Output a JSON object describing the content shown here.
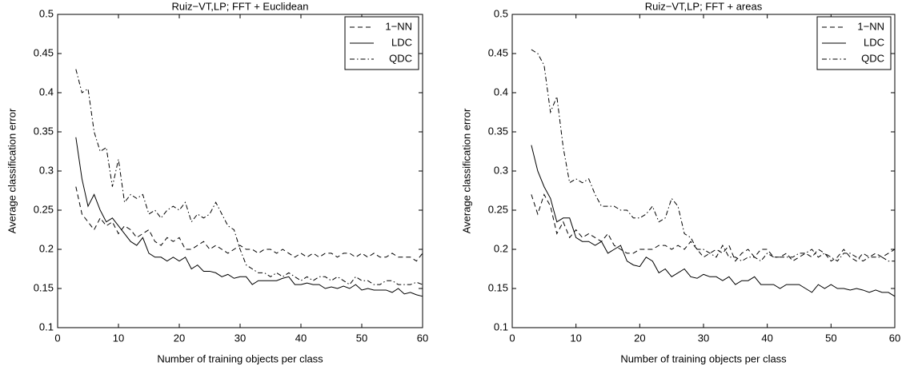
{
  "chart_data": [
    {
      "type": "line",
      "title": "Ruiz−VT,LP; FFT + Euclidean",
      "x_label": "Number of training objects per class",
      "y_label": "Average classification error",
      "xlim": [
        0,
        60
      ],
      "ylim": [
        0.1,
        0.5
      ],
      "xticks": [
        0,
        10,
        20,
        30,
        40,
        50,
        60
      ],
      "yticks": [
        0.1,
        0.15,
        0.2,
        0.25,
        0.3,
        0.35,
        0.4,
        0.45,
        0.5
      ],
      "legend": "top-right",
      "x": [
        3,
        4,
        5,
        6,
        7,
        8,
        9,
        10,
        11,
        12,
        13,
        14,
        15,
        16,
        17,
        18,
        19,
        20,
        21,
        22,
        23,
        24,
        25,
        26,
        27,
        28,
        29,
        30,
        31,
        32,
        33,
        34,
        35,
        36,
        37,
        38,
        39,
        40,
        41,
        42,
        43,
        44,
        45,
        46,
        47,
        48,
        49,
        50,
        51,
        52,
        53,
        54,
        55,
        56,
        57,
        58,
        59,
        60
      ],
      "series": [
        {
          "name": "1−NN",
          "color": "#000000",
          "style": "dashed",
          "values": [
            0.28,
            0.245,
            0.235,
            0.225,
            0.24,
            0.23,
            0.235,
            0.22,
            0.23,
            0.225,
            0.215,
            0.22,
            0.225,
            0.21,
            0.205,
            0.215,
            0.21,
            0.215,
            0.2,
            0.2,
            0.205,
            0.21,
            0.2,
            0.205,
            0.2,
            0.195,
            0.2,
            0.205,
            0.2,
            0.2,
            0.195,
            0.2,
            0.2,
            0.195,
            0.2,
            0.195,
            0.19,
            0.195,
            0.19,
            0.195,
            0.19,
            0.195,
            0.195,
            0.19,
            0.195,
            0.195,
            0.19,
            0.195,
            0.19,
            0.195,
            0.19,
            0.19,
            0.195,
            0.19,
            0.19,
            0.19,
            0.185,
            0.195
          ]
        },
        {
          "name": "LDC",
          "color": "#000000",
          "style": "solid",
          "values": [
            0.343,
            0.29,
            0.255,
            0.27,
            0.25,
            0.235,
            0.24,
            0.23,
            0.22,
            0.21,
            0.205,
            0.215,
            0.195,
            0.19,
            0.19,
            0.185,
            0.19,
            0.185,
            0.19,
            0.175,
            0.18,
            0.172,
            0.172,
            0.17,
            0.165,
            0.168,
            0.163,
            0.165,
            0.165,
            0.155,
            0.16,
            0.16,
            0.16,
            0.16,
            0.163,
            0.165,
            0.155,
            0.155,
            0.157,
            0.155,
            0.155,
            0.15,
            0.152,
            0.15,
            0.153,
            0.15,
            0.155,
            0.148,
            0.15,
            0.148,
            0.148,
            0.148,
            0.145,
            0.15,
            0.143,
            0.145,
            0.142,
            0.14
          ]
        },
        {
          "name": "QDC",
          "color": "#000000",
          "style": "dashdot",
          "values": [
            0.43,
            0.4,
            0.405,
            0.35,
            0.325,
            0.33,
            0.28,
            0.315,
            0.26,
            0.27,
            0.265,
            0.27,
            0.245,
            0.25,
            0.24,
            0.25,
            0.255,
            0.25,
            0.26,
            0.235,
            0.245,
            0.24,
            0.245,
            0.26,
            0.245,
            0.23,
            0.225,
            0.2,
            0.18,
            0.175,
            0.17,
            0.17,
            0.165,
            0.17,
            0.165,
            0.17,
            0.165,
            0.16,
            0.165,
            0.16,
            0.165,
            0.165,
            0.16,
            0.165,
            0.16,
            0.155,
            0.165,
            0.16,
            0.16,
            0.155,
            0.155,
            0.16,
            0.16,
            0.155,
            0.155,
            0.155,
            0.158,
            0.155
          ]
        }
      ]
    },
    {
      "type": "line",
      "title": "Ruiz−VT,LP; FFT + areas",
      "x_label": "Number of training objects per class",
      "y_label": "Average classification error",
      "xlim": [
        0,
        60
      ],
      "ylim": [
        0.1,
        0.5
      ],
      "xticks": [
        0,
        10,
        20,
        30,
        40,
        50,
        60
      ],
      "yticks": [
        0.1,
        0.15,
        0.2,
        0.25,
        0.3,
        0.35,
        0.4,
        0.45,
        0.5
      ],
      "legend": "top-right",
      "x": [
        3,
        4,
        5,
        6,
        7,
        8,
        9,
        10,
        11,
        12,
        13,
        14,
        15,
        16,
        17,
        18,
        19,
        20,
        21,
        22,
        23,
        24,
        25,
        26,
        27,
        28,
        29,
        30,
        31,
        32,
        33,
        34,
        35,
        36,
        37,
        38,
        39,
        40,
        41,
        42,
        43,
        44,
        45,
        46,
        47,
        48,
        49,
        50,
        51,
        52,
        53,
        54,
        55,
        56,
        57,
        58,
        59,
        60
      ],
      "series": [
        {
          "name": "1−NN",
          "color": "#000000",
          "style": "dashed",
          "values": [
            0.27,
            0.245,
            0.27,
            0.255,
            0.22,
            0.235,
            0.215,
            0.225,
            0.215,
            0.22,
            0.215,
            0.21,
            0.22,
            0.205,
            0.2,
            0.195,
            0.195,
            0.2,
            0.2,
            0.2,
            0.205,
            0.205,
            0.2,
            0.205,
            0.2,
            0.21,
            0.2,
            0.19,
            0.195,
            0.2,
            0.195,
            0.205,
            0.185,
            0.195,
            0.2,
            0.19,
            0.2,
            0.2,
            0.19,
            0.19,
            0.195,
            0.185,
            0.19,
            0.195,
            0.19,
            0.2,
            0.195,
            0.185,
            0.19,
            0.2,
            0.19,
            0.185,
            0.195,
            0.19,
            0.195,
            0.19,
            0.195,
            0.2
          ]
        },
        {
          "name": "LDC",
          "color": "#000000",
          "style": "solid",
          "values": [
            0.333,
            0.3,
            0.28,
            0.265,
            0.235,
            0.24,
            0.24,
            0.215,
            0.21,
            0.21,
            0.205,
            0.21,
            0.195,
            0.2,
            0.205,
            0.185,
            0.18,
            0.178,
            0.19,
            0.185,
            0.17,
            0.175,
            0.165,
            0.17,
            0.175,
            0.165,
            0.163,
            0.168,
            0.165,
            0.165,
            0.16,
            0.165,
            0.155,
            0.16,
            0.16,
            0.165,
            0.155,
            0.155,
            0.155,
            0.15,
            0.155,
            0.155,
            0.155,
            0.15,
            0.145,
            0.155,
            0.15,
            0.155,
            0.15,
            0.15,
            0.148,
            0.15,
            0.148,
            0.145,
            0.148,
            0.145,
            0.145,
            0.14
          ]
        },
        {
          "name": "QDC",
          "color": "#000000",
          "style": "dashdot",
          "values": [
            0.455,
            0.45,
            0.435,
            0.375,
            0.395,
            0.33,
            0.285,
            0.29,
            0.285,
            0.29,
            0.27,
            0.255,
            0.255,
            0.255,
            0.25,
            0.25,
            0.24,
            0.24,
            0.245,
            0.255,
            0.235,
            0.24,
            0.265,
            0.255,
            0.22,
            0.215,
            0.2,
            0.2,
            0.195,
            0.19,
            0.205,
            0.19,
            0.19,
            0.185,
            0.19,
            0.19,
            0.185,
            0.195,
            0.19,
            0.19,
            0.19,
            0.19,
            0.195,
            0.195,
            0.2,
            0.19,
            0.195,
            0.19,
            0.185,
            0.195,
            0.195,
            0.19,
            0.185,
            0.19,
            0.19,
            0.19,
            0.185,
            0.185
          ]
        }
      ]
    }
  ]
}
